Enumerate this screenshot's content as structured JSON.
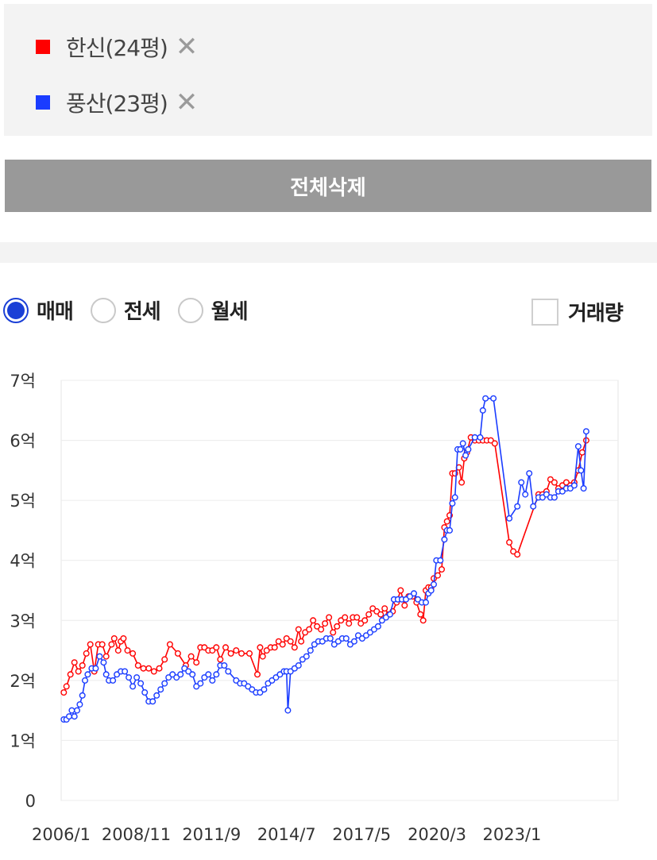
{
  "compare": {
    "items": [
      {
        "label": "한신(24평)",
        "color": "#ff0000",
        "close": "✕"
      },
      {
        "label": "풍산(23평)",
        "color": "#1a3cff",
        "close": "✕"
      }
    ],
    "delete_all_label": "전체삭제"
  },
  "filters": {
    "radios": [
      {
        "label": "매매",
        "selected": true
      },
      {
        "label": "전세",
        "selected": false
      },
      {
        "label": "월세",
        "selected": false
      }
    ],
    "volume_label": "거래량",
    "volume_checked": false
  },
  "chart_data": {
    "type": "line",
    "xlim": [
      2006.0,
      2027.0
    ],
    "ylim": [
      0,
      7
    ],
    "grid": true,
    "x_ticks": [
      {
        "x": 2006.0,
        "label": "2006/1"
      },
      {
        "x": 2008.83,
        "label": "2008/11"
      },
      {
        "x": 2011.67,
        "label": "2011/9"
      },
      {
        "x": 2014.5,
        "label": "2014/7"
      },
      {
        "x": 2017.33,
        "label": "2017/5"
      },
      {
        "x": 2020.17,
        "label": "2020/3"
      },
      {
        "x": 2023.0,
        "label": "2023/1"
      }
    ],
    "y_ticks": [
      {
        "y": 0,
        "label": "0"
      },
      {
        "y": 1,
        "label": "1억"
      },
      {
        "y": 2,
        "label": "2억"
      },
      {
        "y": 3,
        "label": "3억"
      },
      {
        "y": 4,
        "label": "4억"
      },
      {
        "y": 5,
        "label": "5억"
      },
      {
        "y": 6,
        "label": "6억"
      },
      {
        "y": 7,
        "label": "7억"
      }
    ],
    "series": [
      {
        "name": "한신(24평)",
        "color": "#ff0000",
        "points": [
          [
            2006.1,
            1.8
          ],
          [
            2006.2,
            1.9
          ],
          [
            2006.35,
            2.1
          ],
          [
            2006.5,
            2.3
          ],
          [
            2006.65,
            2.15
          ],
          [
            2006.8,
            2.25
          ],
          [
            2006.95,
            2.45
          ],
          [
            2007.1,
            2.6
          ],
          [
            2007.25,
            2.15
          ],
          [
            2007.4,
            2.6
          ],
          [
            2007.55,
            2.6
          ],
          [
            2007.7,
            2.4
          ],
          [
            2007.9,
            2.6
          ],
          [
            2008.0,
            2.7
          ],
          [
            2008.15,
            2.5
          ],
          [
            2008.25,
            2.65
          ],
          [
            2008.35,
            2.7
          ],
          [
            2008.5,
            2.5
          ],
          [
            2008.7,
            2.45
          ],
          [
            2008.9,
            2.25
          ],
          [
            2009.1,
            2.2
          ],
          [
            2009.3,
            2.2
          ],
          [
            2009.5,
            2.15
          ],
          [
            2009.7,
            2.2
          ],
          [
            2009.9,
            2.35
          ],
          [
            2010.1,
            2.6
          ],
          [
            2010.4,
            2.45
          ],
          [
            2010.7,
            2.25
          ],
          [
            2010.9,
            2.4
          ],
          [
            2011.1,
            2.3
          ],
          [
            2011.25,
            2.55
          ],
          [
            2011.4,
            2.55
          ],
          [
            2011.55,
            2.5
          ],
          [
            2011.7,
            2.5
          ],
          [
            2011.85,
            2.55
          ],
          [
            2012.0,
            2.35
          ],
          [
            2012.2,
            2.55
          ],
          [
            2012.4,
            2.45
          ],
          [
            2012.6,
            2.5
          ],
          [
            2012.8,
            2.45
          ],
          [
            2013.1,
            2.45
          ],
          [
            2013.4,
            2.1
          ],
          [
            2013.5,
            2.55
          ],
          [
            2013.6,
            2.4
          ],
          [
            2013.75,
            2.5
          ],
          [
            2013.9,
            2.55
          ],
          [
            2014.05,
            2.55
          ],
          [
            2014.2,
            2.65
          ],
          [
            2014.35,
            2.6
          ],
          [
            2014.5,
            2.7
          ],
          [
            2014.65,
            2.65
          ],
          [
            2014.8,
            2.55
          ],
          [
            2014.95,
            2.85
          ],
          [
            2015.05,
            2.65
          ],
          [
            2015.2,
            2.8
          ],
          [
            2015.35,
            2.85
          ],
          [
            2015.5,
            3.0
          ],
          [
            2015.65,
            2.9
          ],
          [
            2015.8,
            2.85
          ],
          [
            2015.95,
            2.95
          ],
          [
            2016.1,
            3.05
          ],
          [
            2016.25,
            2.8
          ],
          [
            2016.4,
            2.9
          ],
          [
            2016.55,
            3.0
          ],
          [
            2016.7,
            3.05
          ],
          [
            2016.85,
            2.95
          ],
          [
            2017.0,
            3.05
          ],
          [
            2017.15,
            3.05
          ],
          [
            2017.3,
            2.95
          ],
          [
            2017.45,
            3.0
          ],
          [
            2017.6,
            3.1
          ],
          [
            2017.75,
            3.2
          ],
          [
            2017.9,
            3.15
          ],
          [
            2018.05,
            3.1
          ],
          [
            2018.2,
            3.2
          ],
          [
            2018.35,
            3.1
          ],
          [
            2018.5,
            3.15
          ],
          [
            2018.65,
            3.3
          ],
          [
            2018.8,
            3.5
          ],
          [
            2018.95,
            3.25
          ],
          [
            2019.1,
            3.4
          ],
          [
            2019.25,
            3.4
          ],
          [
            2019.4,
            3.3
          ],
          [
            2019.55,
            3.1
          ],
          [
            2019.65,
            3.0
          ],
          [
            2019.75,
            3.5
          ],
          [
            2019.85,
            3.55
          ],
          [
            2019.95,
            3.55
          ],
          [
            2020.05,
            3.7
          ],
          [
            2020.2,
            3.75
          ],
          [
            2020.35,
            3.85
          ],
          [
            2020.45,
            4.55
          ],
          [
            2020.55,
            4.65
          ],
          [
            2020.65,
            4.75
          ],
          [
            2020.75,
            5.45
          ],
          [
            2020.85,
            5.45
          ],
          [
            2021.0,
            5.55
          ],
          [
            2021.1,
            5.3
          ],
          [
            2021.2,
            5.7
          ],
          [
            2021.3,
            5.8
          ],
          [
            2021.45,
            6.05
          ],
          [
            2021.6,
            6.0
          ],
          [
            2021.75,
            6.0
          ],
          [
            2021.9,
            6.0
          ],
          [
            2022.05,
            6.0
          ],
          [
            2022.2,
            6.0
          ],
          [
            2022.35,
            5.95
          ],
          [
            2022.9,
            4.3
          ],
          [
            2023.05,
            4.15
          ],
          [
            2023.2,
            4.1
          ],
          [
            2024.0,
            5.1
          ],
          [
            2024.15,
            5.1
          ],
          [
            2024.3,
            5.15
          ],
          [
            2024.45,
            5.35
          ],
          [
            2024.6,
            5.3
          ],
          [
            2024.75,
            5.2
          ],
          [
            2024.9,
            5.25
          ],
          [
            2025.05,
            5.3
          ],
          [
            2025.2,
            5.25
          ],
          [
            2025.35,
            5.3
          ],
          [
            2025.5,
            5.5
          ],
          [
            2025.65,
            5.8
          ],
          [
            2025.8,
            6.0
          ]
        ]
      },
      {
        "name": "풍산(23평)",
        "color": "#1a3cff",
        "points": [
          [
            2006.1,
            1.35
          ],
          [
            2006.2,
            1.35
          ],
          [
            2006.3,
            1.4
          ],
          [
            2006.4,
            1.5
          ],
          [
            2006.5,
            1.4
          ],
          [
            2006.6,
            1.5
          ],
          [
            2006.7,
            1.6
          ],
          [
            2006.8,
            1.75
          ],
          [
            2006.9,
            2.0
          ],
          [
            2007.0,
            2.1
          ],
          [
            2007.15,
            2.2
          ],
          [
            2007.3,
            2.2
          ],
          [
            2007.45,
            2.4
          ],
          [
            2007.6,
            2.3
          ],
          [
            2007.7,
            2.1
          ],
          [
            2007.8,
            2.0
          ],
          [
            2007.95,
            2.0
          ],
          [
            2008.1,
            2.1
          ],
          [
            2008.25,
            2.15
          ],
          [
            2008.4,
            2.15
          ],
          [
            2008.55,
            2.05
          ],
          [
            2008.7,
            1.9
          ],
          [
            2008.85,
            2.05
          ],
          [
            2009.0,
            1.95
          ],
          [
            2009.15,
            1.8
          ],
          [
            2009.3,
            1.65
          ],
          [
            2009.45,
            1.65
          ],
          [
            2009.6,
            1.75
          ],
          [
            2009.75,
            1.85
          ],
          [
            2009.9,
            1.95
          ],
          [
            2010.05,
            2.05
          ],
          [
            2010.2,
            2.1
          ],
          [
            2010.35,
            2.05
          ],
          [
            2010.5,
            2.1
          ],
          [
            2010.65,
            2.2
          ],
          [
            2010.8,
            2.15
          ],
          [
            2010.95,
            2.1
          ],
          [
            2011.1,
            1.9
          ],
          [
            2011.25,
            1.95
          ],
          [
            2011.4,
            2.05
          ],
          [
            2011.55,
            2.1
          ],
          [
            2011.7,
            2.0
          ],
          [
            2011.85,
            2.1
          ],
          [
            2012.0,
            2.25
          ],
          [
            2012.15,
            2.25
          ],
          [
            2012.3,
            2.15
          ],
          [
            2012.6,
            2.0
          ],
          [
            2012.75,
            1.95
          ],
          [
            2012.9,
            1.95
          ],
          [
            2013.05,
            1.9
          ],
          [
            2013.2,
            1.85
          ],
          [
            2013.35,
            1.8
          ],
          [
            2013.5,
            1.8
          ],
          [
            2013.65,
            1.85
          ],
          [
            2013.8,
            1.95
          ],
          [
            2013.95,
            2.0
          ],
          [
            2014.1,
            2.05
          ],
          [
            2014.25,
            2.1
          ],
          [
            2014.4,
            2.15
          ],
          [
            2014.5,
            2.15
          ],
          [
            2014.55,
            1.5
          ],
          [
            2014.65,
            2.15
          ],
          [
            2014.8,
            2.2
          ],
          [
            2014.95,
            2.25
          ],
          [
            2015.1,
            2.35
          ],
          [
            2015.25,
            2.4
          ],
          [
            2015.4,
            2.5
          ],
          [
            2015.55,
            2.6
          ],
          [
            2015.7,
            2.65
          ],
          [
            2015.85,
            2.65
          ],
          [
            2016.0,
            2.7
          ],
          [
            2016.15,
            2.7
          ],
          [
            2016.3,
            2.6
          ],
          [
            2016.45,
            2.65
          ],
          [
            2016.6,
            2.7
          ],
          [
            2016.75,
            2.7
          ],
          [
            2016.9,
            2.6
          ],
          [
            2017.05,
            2.65
          ],
          [
            2017.2,
            2.75
          ],
          [
            2017.35,
            2.7
          ],
          [
            2017.5,
            2.75
          ],
          [
            2017.65,
            2.8
          ],
          [
            2017.8,
            2.85
          ],
          [
            2017.95,
            2.9
          ],
          [
            2018.1,
            3.0
          ],
          [
            2018.25,
            3.05
          ],
          [
            2018.4,
            3.1
          ],
          [
            2018.55,
            3.35
          ],
          [
            2018.7,
            3.35
          ],
          [
            2018.85,
            3.35
          ],
          [
            2019.0,
            3.35
          ],
          [
            2019.15,
            3.4
          ],
          [
            2019.3,
            3.45
          ],
          [
            2019.45,
            3.35
          ],
          [
            2019.6,
            3.3
          ],
          [
            2019.75,
            3.3
          ],
          [
            2019.85,
            3.45
          ],
          [
            2019.95,
            3.5
          ],
          [
            2020.05,
            3.6
          ],
          [
            2020.15,
            4.0
          ],
          [
            2020.3,
            4.0
          ],
          [
            2020.45,
            4.35
          ],
          [
            2020.55,
            4.5
          ],
          [
            2020.65,
            4.5
          ],
          [
            2020.75,
            4.95
          ],
          [
            2020.85,
            5.05
          ],
          [
            2020.95,
            5.85
          ],
          [
            2021.05,
            5.85
          ],
          [
            2021.15,
            5.95
          ],
          [
            2021.25,
            5.75
          ],
          [
            2021.35,
            5.85
          ],
          [
            2021.6,
            6.05
          ],
          [
            2021.8,
            6.05
          ],
          [
            2021.9,
            6.5
          ],
          [
            2022.0,
            6.7
          ],
          [
            2022.3,
            6.7
          ],
          [
            2022.9,
            4.7
          ],
          [
            2023.2,
            4.9
          ],
          [
            2023.35,
            5.3
          ],
          [
            2023.5,
            5.1
          ],
          [
            2023.65,
            5.45
          ],
          [
            2023.8,
            4.9
          ],
          [
            2024.0,
            5.05
          ],
          [
            2024.15,
            5.05
          ],
          [
            2024.3,
            5.1
          ],
          [
            2024.45,
            5.05
          ],
          [
            2024.6,
            5.05
          ],
          [
            2024.75,
            5.15
          ],
          [
            2024.9,
            5.15
          ],
          [
            2025.05,
            5.2
          ],
          [
            2025.2,
            5.2
          ],
          [
            2025.35,
            5.25
          ],
          [
            2025.5,
            5.9
          ],
          [
            2025.6,
            5.5
          ],
          [
            2025.7,
            5.2
          ],
          [
            2025.8,
            6.15
          ]
        ]
      }
    ]
  }
}
